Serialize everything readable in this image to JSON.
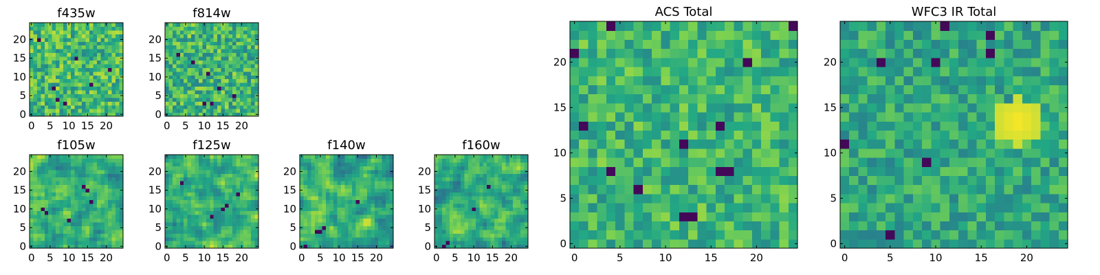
{
  "figure": {
    "panel_titles": [
      "f435w",
      "f814w",
      "f105w",
      "f125w",
      "f140w",
      "f160w",
      "ACS Total",
      "WFC3 IR Total"
    ]
  },
  "colormap": {
    "name": "viridis",
    "stops": [
      "#440154",
      "#414487",
      "#2a788e",
      "#22a884",
      "#7ad151",
      "#fde725"
    ]
  },
  "chart_data": [
    {
      "type": "heatmap",
      "title": "f435w",
      "grid": [
        25,
        25
      ],
      "xlim": [
        -0.5,
        24.5
      ],
      "ylim": [
        -0.5,
        24.5
      ],
      "xticks": [
        0,
        5,
        10,
        15,
        20
      ],
      "yticks": [
        0,
        5,
        10,
        15,
        20
      ],
      "mean": 0.68,
      "spread": 0.22,
      "smooth": 0,
      "seed": 11,
      "dark_cells": [
        [
          6,
          7
        ],
        [
          7,
          4
        ],
        [
          9,
          3
        ],
        [
          16,
          8
        ],
        [
          12,
          15
        ],
        [
          2,
          20
        ],
        [
          21,
          12
        ]
      ]
    },
    {
      "type": "heatmap",
      "title": "f814w",
      "grid": [
        25,
        25
      ],
      "xlim": [
        -0.5,
        24.5
      ],
      "ylim": [
        -0.5,
        24.5
      ],
      "xticks": [
        0,
        5,
        10,
        15,
        20
      ],
      "yticks": [
        0,
        5,
        10,
        15,
        20
      ],
      "mean": 0.66,
      "spread": 0.22,
      "smooth": 0,
      "seed": 23,
      "dark_cells": [
        [
          3,
          16
        ],
        [
          10,
          3
        ],
        [
          12,
          3
        ],
        [
          14,
          7
        ],
        [
          18,
          5
        ],
        [
          7,
          14
        ],
        [
          11,
          11
        ]
      ]
    },
    {
      "type": "heatmap",
      "title": "f105w",
      "grid": [
        25,
        25
      ],
      "xlim": [
        -0.5,
        24.5
      ],
      "ylim": [
        -0.5,
        24.5
      ],
      "xticks": [
        0,
        5,
        10,
        15,
        20
      ],
      "yticks": [
        0,
        5,
        10,
        15,
        20
      ],
      "mean": 0.64,
      "spread": 0.26,
      "smooth": 1,
      "seed": 37,
      "dark_cells": [
        [
          3,
          10
        ],
        [
          4,
          9
        ],
        [
          14,
          16
        ],
        [
          15,
          15
        ],
        [
          16,
          12
        ],
        [
          10,
          7
        ]
      ]
    },
    {
      "type": "heatmap",
      "title": "f125w",
      "grid": [
        25,
        25
      ],
      "xlim": [
        -0.5,
        24.5
      ],
      "ylim": [
        -0.5,
        24.5
      ],
      "xticks": [
        0,
        5,
        10,
        15,
        20
      ],
      "yticks": [
        0,
        5,
        10,
        15,
        20
      ],
      "mean": 0.64,
      "spread": 0.26,
      "smooth": 1,
      "seed": 41,
      "dark_cells": [
        [
          4,
          17
        ],
        [
          15,
          10
        ],
        [
          16,
          11
        ],
        [
          12,
          8
        ],
        [
          19,
          14
        ]
      ]
    },
    {
      "type": "heatmap",
      "title": "f140w",
      "grid": [
        25,
        25
      ],
      "xlim": [
        -0.5,
        24.5
      ],
      "ylim": [
        -0.5,
        24.5
      ],
      "xticks": [
        0,
        5,
        10,
        15,
        20
      ],
      "yticks": [
        0,
        5,
        10,
        15,
        20
      ],
      "mean": 0.64,
      "spread": 0.26,
      "smooth": 1,
      "seed": 53,
      "dark_cells": [
        [
          4,
          4
        ],
        [
          5,
          4
        ],
        [
          6,
          5
        ],
        [
          1,
          0
        ],
        [
          15,
          12
        ]
      ]
    },
    {
      "type": "heatmap",
      "title": "f160w",
      "grid": [
        25,
        25
      ],
      "xlim": [
        -0.5,
        24.5
      ],
      "ylim": [
        -0.5,
        24.5
      ],
      "xticks": [
        0,
        5,
        10,
        15,
        20
      ],
      "yticks": [
        0,
        5,
        10,
        15,
        20
      ],
      "mean": 0.64,
      "spread": 0.26,
      "smooth": 1,
      "seed": 67,
      "dark_cells": [
        [
          2,
          0
        ],
        [
          3,
          1
        ],
        [
          14,
          16
        ],
        [
          10,
          10
        ]
      ]
    },
    {
      "type": "heatmap",
      "title": "ACS Total",
      "grid": [
        25,
        25
      ],
      "xlim": [
        -0.5,
        24.5
      ],
      "ylim": [
        -0.5,
        24.5
      ],
      "xticks": [
        0,
        5,
        10,
        15,
        20
      ],
      "yticks": [
        0,
        5,
        10,
        15,
        20
      ],
      "mean": 0.66,
      "spread": 0.18,
      "smooth": 0,
      "seed": 79,
      "dark_cells": [
        [
          1,
          13
        ],
        [
          4,
          8
        ],
        [
          7,
          6
        ],
        [
          12,
          11
        ],
        [
          16,
          13
        ],
        [
          16,
          8
        ],
        [
          17,
          8
        ],
        [
          12,
          3
        ],
        [
          13,
          3
        ],
        [
          4,
          24
        ],
        [
          19,
          20
        ],
        [
          24,
          24
        ],
        [
          0,
          21
        ]
      ]
    },
    {
      "type": "heatmap",
      "title": "WFC3 IR Total",
      "grid": [
        25,
        25
      ],
      "xlim": [
        -0.5,
        24.5
      ],
      "ylim": [
        -0.5,
        24.5
      ],
      "xticks": [
        0,
        5,
        10,
        15,
        20
      ],
      "yticks": [
        0,
        5,
        10,
        15,
        20
      ],
      "mean": 0.6,
      "spread": 0.16,
      "smooth": 0,
      "seed": 97,
      "dark_cells": [
        [
          11,
          24
        ],
        [
          16,
          23
        ],
        [
          16,
          21
        ],
        [
          4,
          20
        ],
        [
          10,
          20
        ],
        [
          9,
          9
        ],
        [
          5,
          1
        ],
        [
          0,
          11
        ]
      ],
      "bright_region": {
        "center": [
          19,
          13.5
        ],
        "radius": 2.6
      }
    }
  ]
}
